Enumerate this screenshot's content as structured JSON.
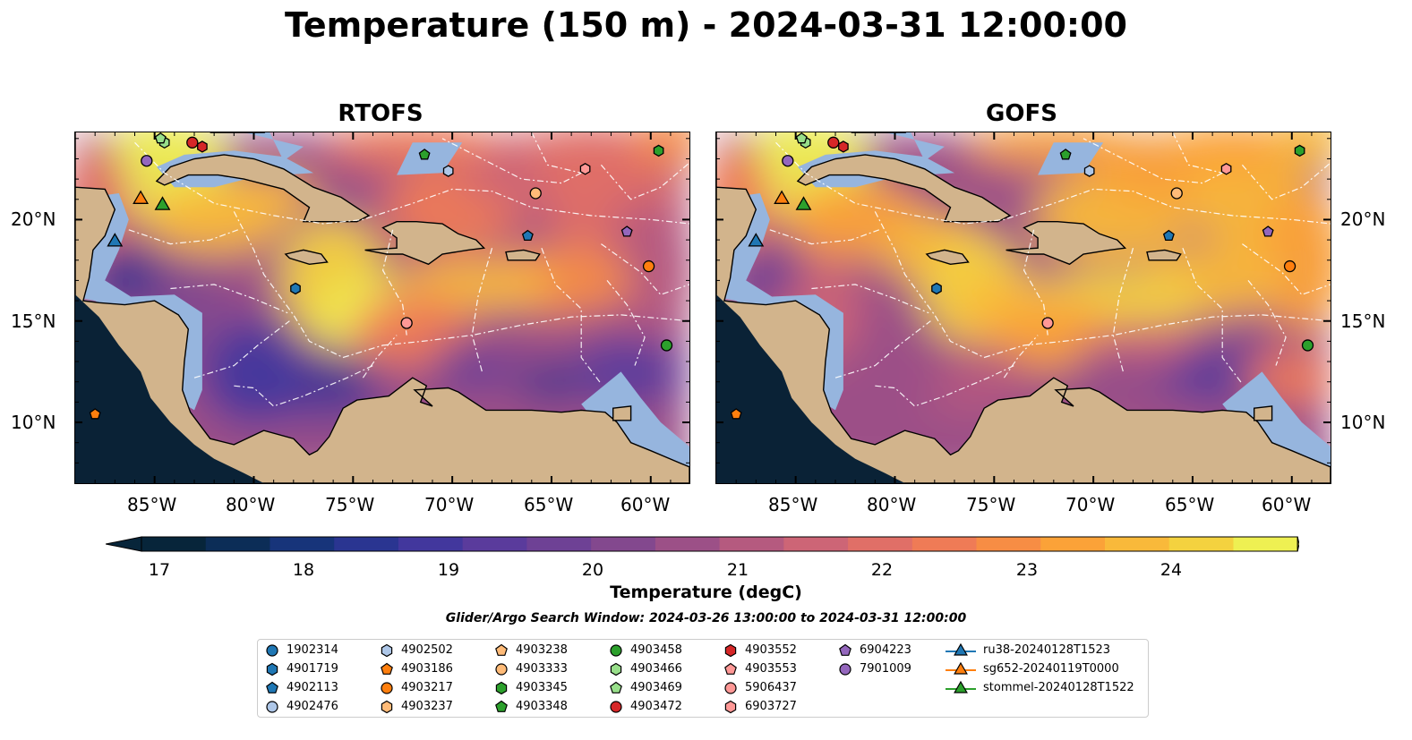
{
  "title": "Temperature (150 m) - 2024-03-31 12:00:00",
  "panels": [
    {
      "title": "RTOFS",
      "model": "rtofs"
    },
    {
      "title": "GOFS",
      "model": "gofs"
    }
  ],
  "lon_ticks": [
    "85°W",
    "80°W",
    "75°W",
    "70°W",
    "65°W",
    "60°W"
  ],
  "lat_ticks": [
    "20°N",
    "15°N",
    "10°N"
  ],
  "colorbar": {
    "label": "Temperature (degC)",
    "ticks": [
      "17",
      "18",
      "19",
      "20",
      "21",
      "22",
      "23",
      "24"
    ],
    "colors": [
      "#07253a",
      "#0c2d57",
      "#17347a",
      "#2a3591",
      "#42379d",
      "#5a3b9c",
      "#6e4195",
      "#83488e",
      "#9c5087",
      "#b55a7f",
      "#cd6576",
      "#e06f67",
      "#ef7b56",
      "#f78d44",
      "#fba238",
      "#f9b93a",
      "#f4d23f",
      "#eef052"
    ]
  },
  "search_window": "Glider/Argo Search Window: 2024-03-26 13:00:00 to 2024-03-31 12:00:00",
  "map_colors": {
    "land": "#d2b48c",
    "shelf": "#96b5de",
    "outside": "#0a2236"
  },
  "legend": [
    {
      "id": "1902314",
      "marker": "circle",
      "color": "#1f77b4"
    },
    {
      "id": "4901719",
      "marker": "hexagon",
      "color": "#1f77b4"
    },
    {
      "id": "4902113",
      "marker": "pentagon",
      "color": "#1f77b4"
    },
    {
      "id": "4902476",
      "marker": "circle",
      "color": "#aec7e8"
    },
    {
      "id": "4902502",
      "marker": "hexagon",
      "color": "#aec7e8"
    },
    {
      "id": "4903186",
      "marker": "pentagon",
      "color": "#ff7f0e"
    },
    {
      "id": "4903217",
      "marker": "circle",
      "color": "#ff7f0e"
    },
    {
      "id": "4903237",
      "marker": "hexagon",
      "color": "#ffbb78"
    },
    {
      "id": "4903238",
      "marker": "pentagon",
      "color": "#ffbb78"
    },
    {
      "id": "4903333",
      "marker": "circle",
      "color": "#ffbb78"
    },
    {
      "id": "4903345",
      "marker": "hexagon",
      "color": "#2ca02c"
    },
    {
      "id": "4903348",
      "marker": "pentagon",
      "color": "#2ca02c"
    },
    {
      "id": "4903458",
      "marker": "circle",
      "color": "#2ca02c"
    },
    {
      "id": "4903466",
      "marker": "hexagon",
      "color": "#98df8a"
    },
    {
      "id": "4903469",
      "marker": "pentagon",
      "color": "#98df8a"
    },
    {
      "id": "4903472",
      "marker": "circle",
      "color": "#d62728"
    },
    {
      "id": "4903552",
      "marker": "hexagon",
      "color": "#d62728"
    },
    {
      "id": "4903553",
      "marker": "pentagon",
      "color": "#ff9896"
    },
    {
      "id": "5906437",
      "marker": "circle",
      "color": "#ff9896"
    },
    {
      "id": "6903727",
      "marker": "hexagon",
      "color": "#ff9896"
    },
    {
      "id": "6904223",
      "marker": "pentagon",
      "color": "#9467bd"
    },
    {
      "id": "7901009",
      "marker": "circle",
      "color": "#9467bd"
    },
    {
      "id": "ru38-20240128T1523",
      "marker": "triangle",
      "color": "#1f77b4"
    },
    {
      "id": "sg652-20240119T0000",
      "marker": "triangle",
      "color": "#ff7f0e"
    },
    {
      "id": "stommel-20240128T1522",
      "marker": "triangle",
      "color": "#2ca02c"
    }
  ],
  "observations": [
    {
      "id": "7901009",
      "lon": -85.4,
      "lat": 22.9
    },
    {
      "id": "4903466",
      "lon": -84.5,
      "lat": 23.8
    },
    {
      "id": "4903469",
      "lon": -84.7,
      "lat": 24.0
    },
    {
      "id": "4903472",
      "lon": -83.1,
      "lat": 23.8
    },
    {
      "id": "4903552",
      "lon": -82.6,
      "lat": 23.6
    },
    {
      "id": "4903348",
      "lon": -71.4,
      "lat": 23.2
    },
    {
      "id": "4902502",
      "lon": -70.2,
      "lat": 22.4
    },
    {
      "id": "6903727",
      "lon": -63.3,
      "lat": 22.5
    },
    {
      "id": "4903333",
      "lon": -65.8,
      "lat": 21.3
    },
    {
      "id": "4903345",
      "lon": -59.6,
      "lat": 23.4
    },
    {
      "id": "4902113",
      "lon": -66.2,
      "lat": 19.2
    },
    {
      "id": "6904223",
      "lon": -61.2,
      "lat": 19.4
    },
    {
      "id": "4903217",
      "lon": -60.1,
      "lat": 17.7
    },
    {
      "id": "4901719",
      "lon": -77.9,
      "lat": 16.6
    },
    {
      "id": "5906437",
      "lon": -72.3,
      "lat": 14.9
    },
    {
      "id": "4903458",
      "lon": -59.2,
      "lat": 13.8
    },
    {
      "id": "4903186",
      "lon": -88.0,
      "lat": 10.4
    },
    {
      "id": "ru38-20240128T1523",
      "lon": -87.0,
      "lat": 18.9
    },
    {
      "id": "sg652-20240119T0000",
      "lon": -85.7,
      "lat": 21.0
    },
    {
      "id": "stommel-20240128T1522",
      "lon": -84.6,
      "lat": 20.7
    }
  ]
}
